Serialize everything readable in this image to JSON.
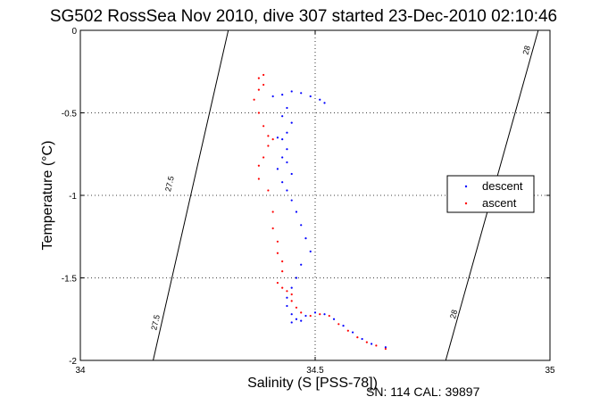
{
  "chart_data": {
    "type": "scatter",
    "title": "SG502 RossSea Nov 2010, dive 307 started 23-Dec-2010 02:10:46",
    "xlabel": "Salinity (S [PSS-78])",
    "ylabel": "Temperature (°C)",
    "xlim": [
      34,
      35
    ],
    "ylim": [
      -2,
      0
    ],
    "x_ticks": [
      34,
      34.5,
      35
    ],
    "x_tick_labels": [
      "34",
      "34.5",
      "35"
    ],
    "y_ticks": [
      -2,
      -1.5,
      -1,
      -0.5,
      0
    ],
    "y_tick_labels": [
      "-2",
      "-1.5",
      "-1",
      "-0.5",
      "0"
    ],
    "grid": true,
    "legend": {
      "placement": "right",
      "entries": [
        {
          "label": "descent",
          "color": "#0000ff"
        },
        {
          "label": "ascent",
          "color": "#ff0000"
        }
      ]
    },
    "footnote": "SN: 114  CAL: 39897",
    "density_contours": [
      {
        "label": "27.5",
        "points": [
          [
            34.315,
            0
          ],
          [
            34.155,
            -2
          ]
        ],
        "label_positions": [
          [
            34.19,
            -0.93
          ],
          [
            34.16,
            -1.77
          ]
        ]
      },
      {
        "label": "28",
        "points": [
          [
            34.975,
            0
          ],
          [
            34.778,
            -2
          ]
        ],
        "label_positions": [
          [
            34.95,
            -0.12
          ],
          [
            34.795,
            -1.72
          ]
        ]
      }
    ],
    "series": [
      {
        "name": "descent",
        "color": "#0000ff",
        "points": [
          [
            34.52,
            -0.44
          ],
          [
            34.51,
            -0.42
          ],
          [
            34.49,
            -0.4
          ],
          [
            34.47,
            -0.38
          ],
          [
            34.45,
            -0.37
          ],
          [
            34.43,
            -0.39
          ],
          [
            34.41,
            -0.4
          ],
          [
            34.44,
            -0.47
          ],
          [
            34.43,
            -0.52
          ],
          [
            34.45,
            -0.56
          ],
          [
            34.44,
            -0.62
          ],
          [
            34.42,
            -0.65
          ],
          [
            34.43,
            -0.66
          ],
          [
            34.44,
            -0.72
          ],
          [
            34.43,
            -0.77
          ],
          [
            34.44,
            -0.8
          ],
          [
            34.42,
            -0.84
          ],
          [
            34.45,
            -0.87
          ],
          [
            34.43,
            -0.92
          ],
          [
            34.44,
            -0.97
          ],
          [
            34.45,
            -1.03
          ],
          [
            34.46,
            -1.1
          ],
          [
            34.47,
            -1.18
          ],
          [
            34.48,
            -1.26
          ],
          [
            34.49,
            -1.34
          ],
          [
            34.47,
            -1.42
          ],
          [
            34.46,
            -1.5
          ],
          [
            34.45,
            -1.56
          ],
          [
            34.44,
            -1.62
          ],
          [
            34.44,
            -1.67
          ],
          [
            34.45,
            -1.72
          ],
          [
            34.46,
            -1.75
          ],
          [
            34.45,
            -1.77
          ],
          [
            34.47,
            -1.76
          ],
          [
            34.48,
            -1.73
          ],
          [
            34.5,
            -1.71
          ],
          [
            34.52,
            -1.72
          ],
          [
            34.54,
            -1.75
          ],
          [
            34.56,
            -1.79
          ],
          [
            34.58,
            -1.83
          ],
          [
            34.6,
            -1.87
          ],
          [
            34.62,
            -1.9
          ],
          [
            34.65,
            -1.92
          ]
        ]
      },
      {
        "name": "ascent",
        "color": "#ff0000",
        "points": [
          [
            34.39,
            -0.27
          ],
          [
            34.38,
            -0.29
          ],
          [
            34.39,
            -0.33
          ],
          [
            34.38,
            -0.36
          ],
          [
            34.37,
            -0.42
          ],
          [
            34.38,
            -0.5
          ],
          [
            34.39,
            -0.58
          ],
          [
            34.4,
            -0.64
          ],
          [
            34.41,
            -0.66
          ],
          [
            34.4,
            -0.7
          ],
          [
            34.39,
            -0.77
          ],
          [
            34.38,
            -0.82
          ],
          [
            34.38,
            -0.9
          ],
          [
            34.4,
            -0.97
          ],
          [
            34.41,
            -1.1
          ],
          [
            34.41,
            -1.2
          ],
          [
            34.42,
            -1.28
          ],
          [
            34.42,
            -1.35
          ],
          [
            34.43,
            -1.4
          ],
          [
            34.43,
            -1.46
          ],
          [
            34.42,
            -1.53
          ],
          [
            34.43,
            -1.56
          ],
          [
            34.44,
            -1.58
          ],
          [
            34.45,
            -1.6
          ],
          [
            34.45,
            -1.64
          ],
          [
            34.46,
            -1.68
          ],
          [
            34.47,
            -1.71
          ],
          [
            34.49,
            -1.73
          ],
          [
            34.51,
            -1.72
          ],
          [
            34.53,
            -1.73
          ],
          [
            34.55,
            -1.78
          ],
          [
            34.57,
            -1.82
          ],
          [
            34.59,
            -1.86
          ],
          [
            34.61,
            -1.89
          ],
          [
            34.63,
            -1.91
          ],
          [
            34.65,
            -1.93
          ]
        ]
      }
    ]
  }
}
